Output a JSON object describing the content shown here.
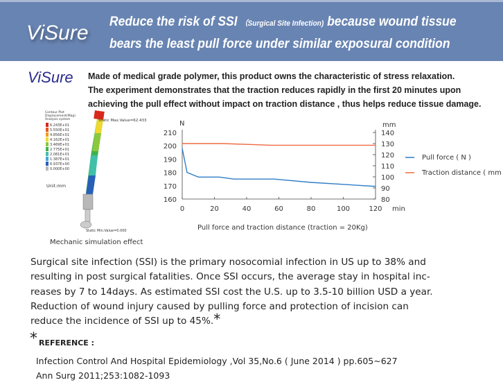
{
  "banner": {
    "brand": "ViSure",
    "headline_a": "Reduce the risk of  SSI",
    "headline_paren": "（Surgical Site Infection)",
    "headline_b": " because wound tissue",
    "headline_line2": "bears the least pull force under similar exposural condition"
  },
  "intro": {
    "brand": "ViSure",
    "lines": [
      "Made of medical grade  polymer, this product owns the characteristic of stress relaxation.",
      "The experiment demonstrates that the traction reduces rapidly in the first 20 minutes upon",
      "achieving the pull effect without impact on traction distance , thus helps reduce tissue damage."
    ]
  },
  "simulation": {
    "legend_title": [
      "Contour Plot",
      "Displacement(Mag)",
      "Analysis system"
    ],
    "legend_values": [
      "6.243E+01",
      "5.550E+01",
      "4.856E+01",
      "4.162E+01",
      "3.469E+01",
      "2.775E+01",
      "2.081E+01",
      "1.387E+01",
      "6.937E+00",
      "0.000E+00"
    ],
    "legend_colors": [
      "#d8281e",
      "#e8561e",
      "#f09a20",
      "#f0d830",
      "#8cc83c",
      "#40b050",
      "#40c0a8",
      "#40a8d8",
      "#2860b8",
      "#b8b8b8"
    ],
    "unit": "Unit:mm",
    "max_label": "Static Max.Value=62.433",
    "min_label": "Static Min.Value=0.000",
    "caption": "Mechanic simulation effect"
  },
  "chart_data": {
    "type": "line",
    "title": "Pull force and traction distance (traction = 20Kg)",
    "xlabel": "min",
    "ylabel_left": "N",
    "ylabel_right": "mm",
    "xlim": [
      0,
      120
    ],
    "ylim_left": [
      160,
      210
    ],
    "ylim_right": [
      80,
      140
    ],
    "x_ticks": [
      0,
      20,
      40,
      60,
      80,
      100,
      120
    ],
    "y_ticks_left": [
      160,
      170,
      180,
      190,
      200,
      210
    ],
    "y_ticks_right": [
      80,
      90,
      100,
      110,
      120,
      130,
      140
    ],
    "legend_position": "right",
    "series": [
      {
        "name": "Pull force ( N )",
        "axis": "left",
        "color": "#2f7ec8",
        "x": [
          0,
          3,
          10,
          23,
          32,
          57,
          80,
          120
        ],
        "y": [
          198,
          180,
          176.5,
          176.5,
          175,
          175,
          172.5,
          169.5
        ]
      },
      {
        "name": "Traction distance ( mm )",
        "axis": "right",
        "color": "#ef6a40",
        "x": [
          0,
          25,
          55,
          120
        ],
        "y": [
          130,
          130,
          128.5,
          128.5
        ]
      }
    ]
  },
  "body": {
    "lines": [
      "Surgical site infection (SSI) is the primary nosocomial infection in US up to 38% and",
      "resulting in post surgical fatalities. Once SSI occurs, the average stay in hospital inc-",
      "reases by 7 to 14days. As estimated SSI cost the U.S. up to 3.5-10 billion USD a year.",
      "Reduction of wound injury caused by pulling force and protection of incision  can",
      "reduce the incidence of SSI up to 45%."
    ],
    "asterisk": "*"
  },
  "reference": {
    "star": "*",
    "heading": "REFERENCE :",
    "items": [
      "Infection Control And Hospital Epidemiology ,Vol 35,No.6 ( June 2014 ) pp.605~627",
      "Ann Surg 2011;253:1082-1093"
    ]
  }
}
